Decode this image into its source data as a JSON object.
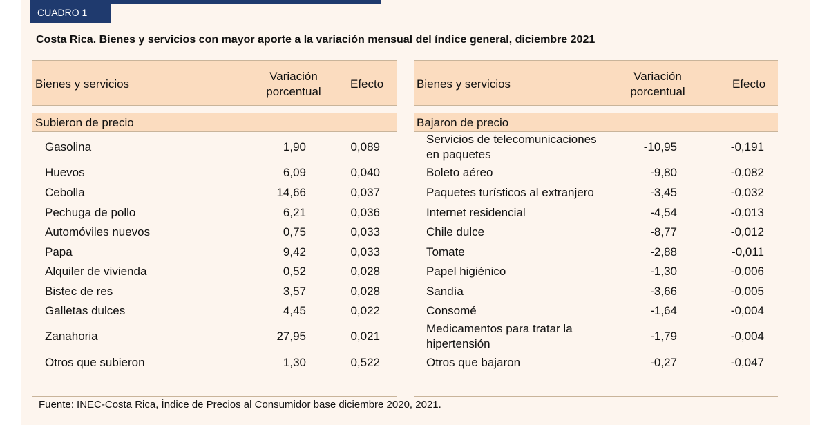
{
  "badge": "CUADRO 1",
  "title": "Costa Rica. Bienes y servicios con mayor aporte a la variación mensual del índice general, diciembre 2021",
  "headers": {
    "name": "Bienes y servicios",
    "var_line1": "Variación",
    "var_line2": "porcentual",
    "effect": "Efecto"
  },
  "left": {
    "section": "Subieron de precio",
    "rows": [
      {
        "name": "Gasolina",
        "var": "1,90",
        "effect": "0,089"
      },
      {
        "name": "Huevos",
        "var": "6,09",
        "effect": "0,040"
      },
      {
        "name": "Cebolla",
        "var": "14,66",
        "effect": "0,037"
      },
      {
        "name": "Pechuga de pollo",
        "var": "6,21",
        "effect": "0,036"
      },
      {
        "name": "Automóviles nuevos",
        "var": "0,75",
        "effect": "0,033"
      },
      {
        "name": "Papa",
        "var": "9,42",
        "effect": "0,033"
      },
      {
        "name": "Alquiler de vivienda",
        "var": "0,52",
        "effect": "0,028"
      },
      {
        "name": "Bistec de res",
        "var": "3,57",
        "effect": "0,028"
      },
      {
        "name": "Galletas dulces",
        "var": "4,45",
        "effect": "0,022"
      },
      {
        "name": "Zanahoria",
        "var": "27,95",
        "effect": "0,021"
      },
      {
        "name": "Otros que subieron",
        "var": "1,30",
        "effect": "0,522"
      }
    ]
  },
  "right": {
    "section": "Bajaron de precio",
    "rows": [
      {
        "name": "Servicios de telecomunicaciones",
        "name2": "en paquetes",
        "var": "-10,95",
        "effect": "-0,191"
      },
      {
        "name": "Boleto aéreo",
        "var": "-9,80",
        "effect": "-0,082"
      },
      {
        "name": "Paquetes turísticos al extranjero",
        "var": "-3,45",
        "effect": "-0,032"
      },
      {
        "name": "Internet residencial",
        "var": "-4,54",
        "effect": "-0,013"
      },
      {
        "name": "Chile dulce",
        "var": "-8,77",
        "effect": "-0,012"
      },
      {
        "name": "Tomate",
        "var": "-2,88",
        "effect": "-0,011"
      },
      {
        "name": "Papel higiénico",
        "var": "-1,30",
        "effect": "-0,006"
      },
      {
        "name": "Sandía",
        "var": "-3,66",
        "effect": "-0,005"
      },
      {
        "name": "Consomé",
        "var": "-1,64",
        "effect": "-0,004"
      },
      {
        "name": "Medicamentos para tratar la",
        "name2": "hipertensión",
        "var": "-1,79",
        "effect": "-0,004"
      },
      {
        "name": "Otros que bajaron",
        "var": "-0,27",
        "effect": "-0,047"
      }
    ]
  },
  "source": "Fuente: INEC-Costa Rica, Índice de Precios al Consumidor base diciembre 2020, 2021."
}
